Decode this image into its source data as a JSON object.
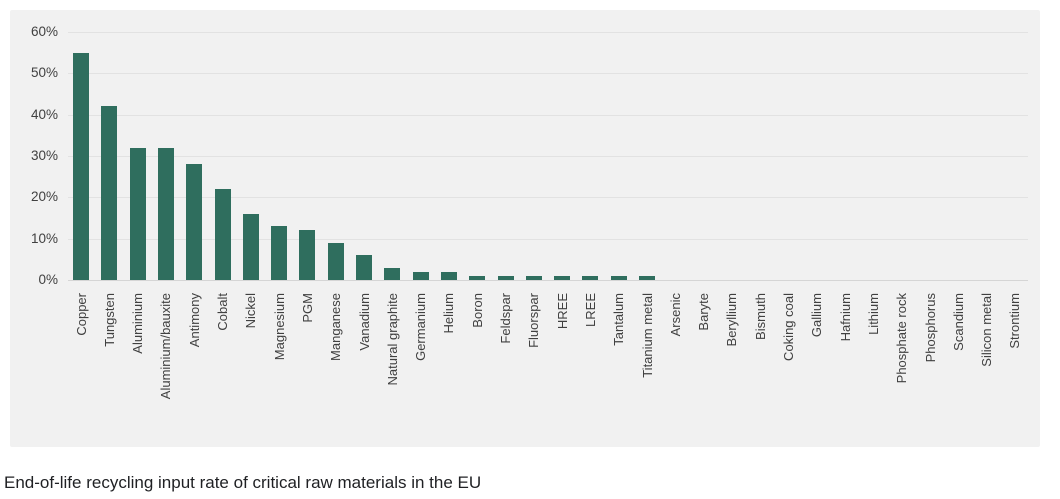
{
  "chart_data": {
    "type": "bar",
    "title": "End-of-life recycling input rate of critical raw materials in the EU",
    "xlabel": "",
    "ylabel": "",
    "unit": "%",
    "ylim": [
      0,
      60
    ],
    "yticks": [
      0,
      10,
      20,
      30,
      40,
      50,
      60
    ],
    "ytick_labels": [
      "0%",
      "10%",
      "20%",
      "30%",
      "40%",
      "50%",
      "60%"
    ],
    "grid": true,
    "legend": null,
    "bar_color": "#2f6e5e",
    "panel_background": "#f1f1f1",
    "axis_text_color": "#404040",
    "categories": [
      "Copper",
      "Tungsten",
      "Aluminium",
      "Aluminium/bauxite",
      "Antimony",
      "Cobalt",
      "Nickel",
      "Magnesium",
      "PGM",
      "Manganese",
      "Vanadium",
      "Natural graphite",
      "Germanium",
      "Helium",
      "Boron",
      "Feldspar",
      "Fluorspar",
      "HREE",
      "LREE",
      "Tantalum",
      "Titanium metal",
      "Arsenic",
      "Baryte",
      "Beryllium",
      "Bismuth",
      "Coking coal",
      "Gallium",
      "Hafnium",
      "Lithium",
      "Phosphate rock",
      "Phosphorus",
      "Scandium",
      "Silicon metal",
      "Strontium"
    ],
    "values": [
      55,
      42,
      32,
      32,
      28,
      22,
      16,
      13,
      12,
      9,
      6,
      3,
      2,
      2,
      1,
      1,
      1,
      1,
      1,
      1,
      1,
      0,
      0,
      0,
      0,
      0,
      0,
      0,
      0,
      0,
      0,
      0,
      0,
      0
    ]
  }
}
